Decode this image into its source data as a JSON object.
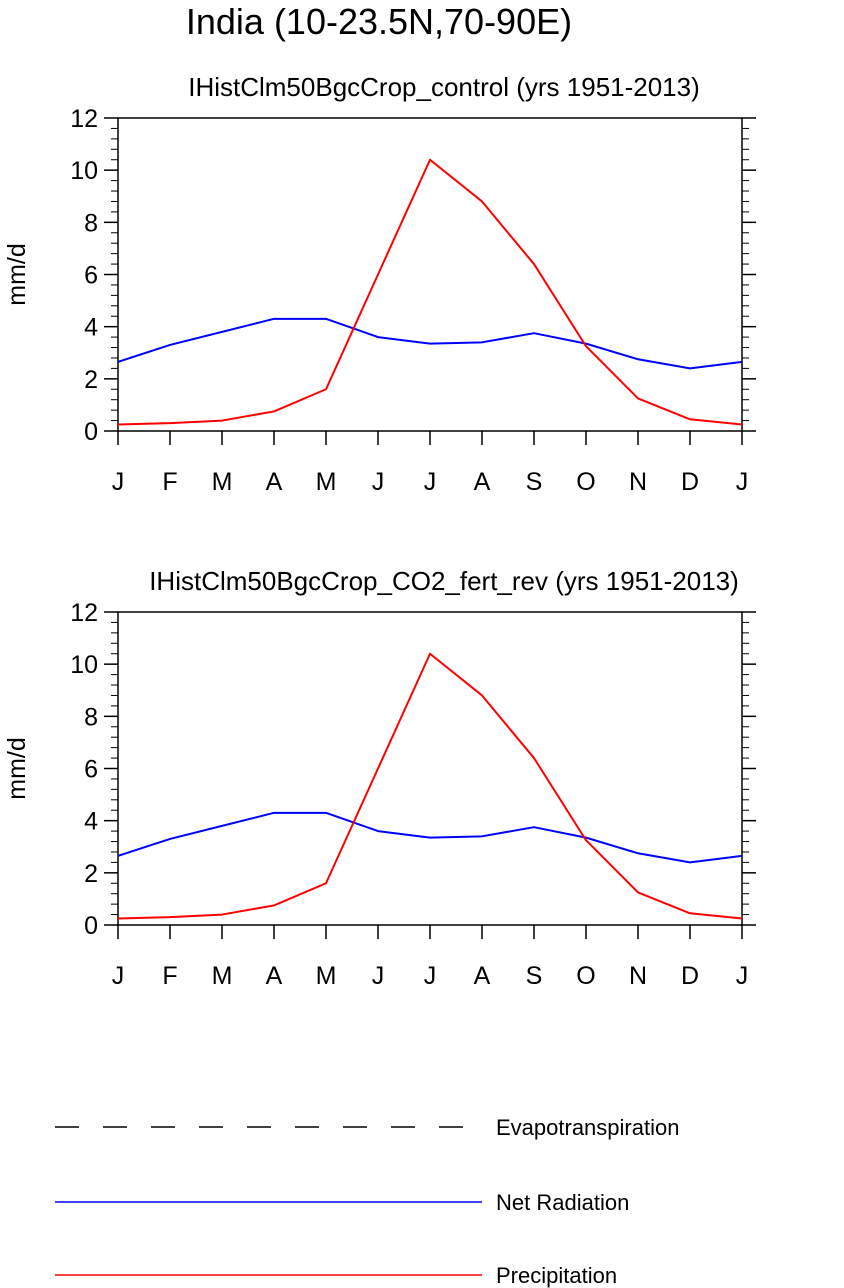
{
  "page_title": "India (10-23.5N,70-90E)",
  "legend": [
    {
      "label": "Evapotranspiration",
      "color": "#000000",
      "style": "dashed"
    },
    {
      "label": "Net Radiation",
      "color": "#0000ff",
      "style": "solid"
    },
    {
      "label": "Precipitation",
      "color": "#ff0000",
      "style": "solid"
    }
  ],
  "chart_data": [
    {
      "type": "line",
      "title": "IHistClm50BgcCrop_control (yrs 1951-2013)",
      "xlabel": "",
      "ylabel": "mm/d",
      "ylim": [
        0,
        12
      ],
      "yticks": [
        0,
        2,
        4,
        6,
        8,
        10,
        12
      ],
      "categories": [
        "J",
        "F",
        "M",
        "A",
        "M",
        "J",
        "J",
        "A",
        "S",
        "O",
        "N",
        "D",
        "J"
      ],
      "grid": false,
      "series": [
        {
          "name": "Net Radiation",
          "color": "#0000ff",
          "style": "solid",
          "values": [
            2.65,
            3.3,
            3.8,
            4.3,
            4.3,
            3.6,
            3.35,
            3.4,
            3.75,
            3.35,
            2.75,
            2.4,
            2.65
          ]
        },
        {
          "name": "Precipitation",
          "color": "#ff0000",
          "style": "solid",
          "values": [
            0.25,
            0.3,
            0.4,
            0.75,
            1.6,
            6.0,
            10.4,
            8.8,
            6.4,
            3.25,
            1.25,
            0.45,
            0.25
          ]
        }
      ]
    },
    {
      "type": "line",
      "title": "IHistClm50BgcCrop_CO2_fert_rev (yrs 1951-2013)",
      "xlabel": "",
      "ylabel": "mm/d",
      "ylim": [
        0,
        12
      ],
      "yticks": [
        0,
        2,
        4,
        6,
        8,
        10,
        12
      ],
      "categories": [
        "J",
        "F",
        "M",
        "A",
        "M",
        "J",
        "J",
        "A",
        "S",
        "O",
        "N",
        "D",
        "J"
      ],
      "grid": false,
      "series": [
        {
          "name": "Net Radiation",
          "color": "#0000ff",
          "style": "solid",
          "values": [
            2.65,
            3.3,
            3.8,
            4.3,
            4.3,
            3.6,
            3.35,
            3.4,
            3.75,
            3.35,
            2.75,
            2.4,
            2.65
          ]
        },
        {
          "name": "Precipitation",
          "color": "#ff0000",
          "style": "solid",
          "values": [
            0.25,
            0.3,
            0.4,
            0.75,
            1.6,
            6.0,
            10.4,
            8.8,
            6.4,
            3.25,
            1.25,
            0.45,
            0.25
          ]
        }
      ]
    }
  ]
}
